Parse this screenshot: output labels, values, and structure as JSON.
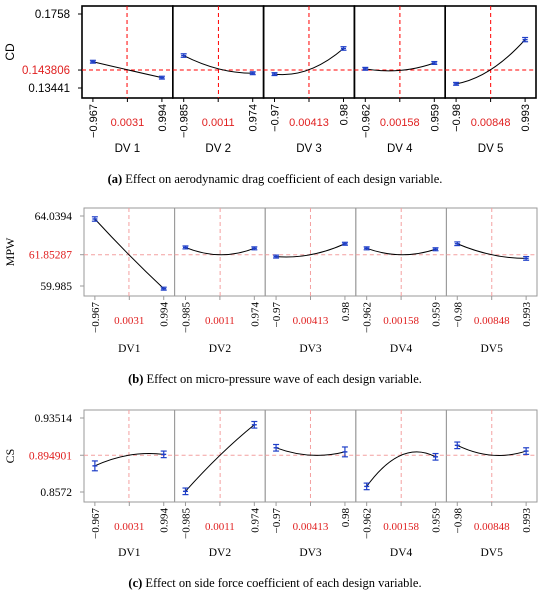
{
  "figures": [
    {
      "caption_letter": "(a)",
      "caption_text": " Effect on aerodynamic drag coefficient of each design variable.",
      "chart_data": {
        "type": "line",
        "ylabel": "CD",
        "yticks": [
          "0.1758",
          "0.143806",
          "0.13441"
        ],
        "ylim": [
          0.128,
          0.18
        ],
        "reference_y": 0.143806,
        "panels": [
          {
            "xlabel": "DV 1",
            "xticks": [
              "−0.967",
              "0.0031",
              "0.994"
            ],
            "x": [
              -0.967,
              0.0031,
              0.994
            ],
            "y": [
              0.1485,
              0.144,
              0.1395
            ],
            "error": [
              0.0008,
              0,
              0.0008
            ]
          },
          {
            "xlabel": "DV 2",
            "xticks": [
              "−0.985",
              "0.0011",
              "0.974"
            ],
            "x": [
              -0.985,
              0.0011,
              0.974
            ],
            "y": [
              0.152,
              0.1445,
              0.142
            ],
            "error": [
              0.001,
              0,
              0.0008
            ]
          },
          {
            "xlabel": "DV 3",
            "xticks": [
              "−0.97",
              "0.00413",
              "0.98"
            ],
            "x": [
              -0.97,
              0.00413,
              0.98
            ],
            "y": [
              0.1415,
              0.144,
              0.156
            ],
            "error": [
              0.0008,
              0,
              0.001
            ]
          },
          {
            "xlabel": "DV 4",
            "xticks": [
              "−0.962",
              "0.00158",
              "0.959"
            ],
            "x": [
              -0.962,
              0.00158,
              0.959
            ],
            "y": [
              0.1445,
              0.1436,
              0.1478
            ],
            "error": [
              0.0008,
              0,
              0.0008
            ]
          },
          {
            "xlabel": "DV 5",
            "xticks": [
              "−0.98",
              "0.00848",
              "0.993"
            ],
            "x": [
              -0.98,
              0.00848,
              0.993
            ],
            "y": [
              0.136,
              0.144,
              0.161
            ],
            "error": [
              0.0008,
              0,
              0.0012
            ]
          }
        ]
      }
    },
    {
      "caption_letter": "(b)",
      "caption_text": " Effect on micro-pressure wave of each design variable.",
      "chart_data": {
        "type": "line",
        "ylabel": "MPW",
        "yticks": [
          "64.0394",
          "61.85287",
          "59.985"
        ],
        "ylim": [
          59.6,
          64.4
        ],
        "reference_y": 61.85287,
        "panels": [
          {
            "xlabel": "DV1",
            "xticks": [
              "−0.967",
              "0.0031",
              "0.994"
            ],
            "x": [
              -0.967,
              0.0031,
              0.994
            ],
            "y": [
              63.8,
              61.85,
              60.0
            ],
            "error": [
              0.12,
              0,
              0.08
            ]
          },
          {
            "xlabel": "DV2",
            "xticks": [
              "−0.985",
              "0.0011",
              "0.974"
            ],
            "x": [
              -0.985,
              0.0011,
              0.974
            ],
            "y": [
              62.25,
              61.85,
              62.2
            ],
            "error": [
              0.08,
              0,
              0.08
            ]
          },
          {
            "xlabel": "DV3",
            "xticks": [
              "−0.97",
              "0.00413",
              "0.98"
            ],
            "x": [
              -0.97,
              0.00413,
              0.98
            ],
            "y": [
              61.75,
              61.85,
              62.45
            ],
            "error": [
              0.08,
              0,
              0.08
            ]
          },
          {
            "xlabel": "DV4",
            "xticks": [
              "−0.962",
              "0.00158",
              "0.959"
            ],
            "x": [
              -0.962,
              0.00158,
              0.959
            ],
            "y": [
              62.2,
              61.85,
              62.15
            ],
            "error": [
              0.08,
              0,
              0.08
            ]
          },
          {
            "xlabel": "DV5",
            "xticks": [
              "−0.98",
              "0.00848",
              "0.993"
            ],
            "x": [
              -0.98,
              0.00848,
              0.993
            ],
            "y": [
              62.45,
              61.85,
              61.65
            ],
            "error": [
              0.1,
              0,
              0.1
            ]
          }
        ]
      }
    },
    {
      "caption_letter": "(c)",
      "caption_text": " Effect on side force coefficient of each design variable.",
      "chart_data": {
        "type": "line",
        "ylabel": "CS",
        "yticks": [
          "0.93514",
          "0.894901",
          "0.8572"
        ],
        "ylim": [
          0.838,
          0.95
        ],
        "reference_y": 0.894901,
        "panels": [
          {
            "xlabel": "DV1",
            "xticks": [
              "−0.967",
              "0.0031",
              "0.994"
            ],
            "x": [
              -0.967,
              0.0031,
              0.994
            ],
            "y": [
              0.882,
              0.895,
              0.896
            ],
            "error": [
              0.006,
              0,
              0.004
            ]
          },
          {
            "xlabel": "DV2",
            "xticks": [
              "−0.985",
              "0.0011",
              "0.974"
            ],
            "x": [
              -0.985,
              0.0011,
              0.974
            ],
            "y": [
              0.851,
              0.895,
              0.932
            ],
            "error": [
              0.004,
              0,
              0.004
            ]
          },
          {
            "xlabel": "DV3",
            "xticks": [
              "−0.97",
              "0.00413",
              "0.98"
            ],
            "x": [
              -0.97,
              0.00413,
              0.98
            ],
            "y": [
              0.904,
              0.895,
              0.899
            ],
            "error": [
              0.004,
              0,
              0.006
            ]
          },
          {
            "xlabel": "DV4",
            "xticks": [
              "−0.962",
              "0.00158",
              "0.959"
            ],
            "x": [
              -0.962,
              0.00158,
              0.959
            ],
            "y": [
              0.857,
              0.895,
              0.893
            ],
            "error": [
              0.004,
              0,
              0.004
            ]
          },
          {
            "xlabel": "DV5",
            "xticks": [
              "−0.98",
              "0.00848",
              "0.993"
            ],
            "x": [
              -0.98,
              0.00848,
              0.993
            ],
            "y": [
              0.907,
              0.895,
              0.9
            ],
            "error": [
              0.004,
              0,
              0.004
            ]
          }
        ]
      }
    }
  ],
  "colors": {
    "curve": "#000000",
    "error_bar": "#1f3fc8",
    "reference_a": "#ff0000",
    "reference_bc": "#f4a0a0",
    "highlight_text": "#e02020",
    "axis": "#000000",
    "axis_light": "#9a9a9a",
    "text": "#000000"
  }
}
